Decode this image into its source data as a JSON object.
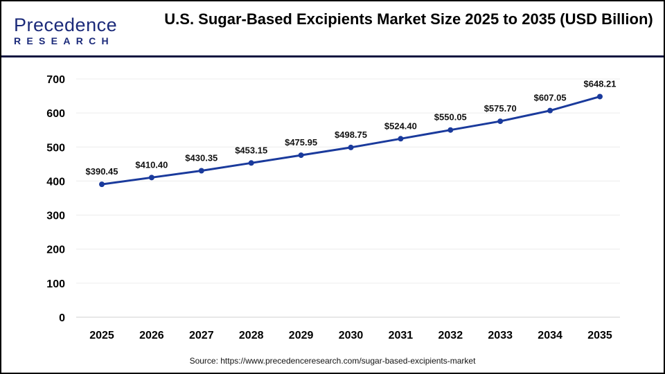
{
  "logo": {
    "line1": "Precedence",
    "line2": "RESEARCH"
  },
  "title": "U.S. Sugar-Based Excipients Market Size 2025 to 2035 (USD Billion)",
  "source": "Source: https://www.precedenceresearch.com/sugar-based-excipients-market",
  "chart_data": {
    "type": "line",
    "title": "U.S. Sugar-Based Excipients Market Size 2025 to 2035 (USD Billion)",
    "categories": [
      "2025",
      "2026",
      "2027",
      "2028",
      "2029",
      "2030",
      "2031",
      "2032",
      "2033",
      "2034",
      "2035"
    ],
    "values": [
      390.45,
      410.4,
      430.35,
      453.15,
      475.95,
      498.75,
      524.4,
      550.05,
      575.7,
      607.05,
      648.21
    ],
    "data_labels": [
      "$390.45",
      "$410.40",
      "$430.35",
      "$453.15",
      "$475.95",
      "$498.75",
      "$524.40",
      "$550.05",
      "$575.70",
      "$607.05",
      "$648.21"
    ],
    "yticks": [
      0,
      100,
      200,
      300,
      400,
      500,
      600,
      700
    ],
    "ylim": [
      0,
      700
    ],
    "grid": true,
    "line_color": "#1a3a9c"
  }
}
